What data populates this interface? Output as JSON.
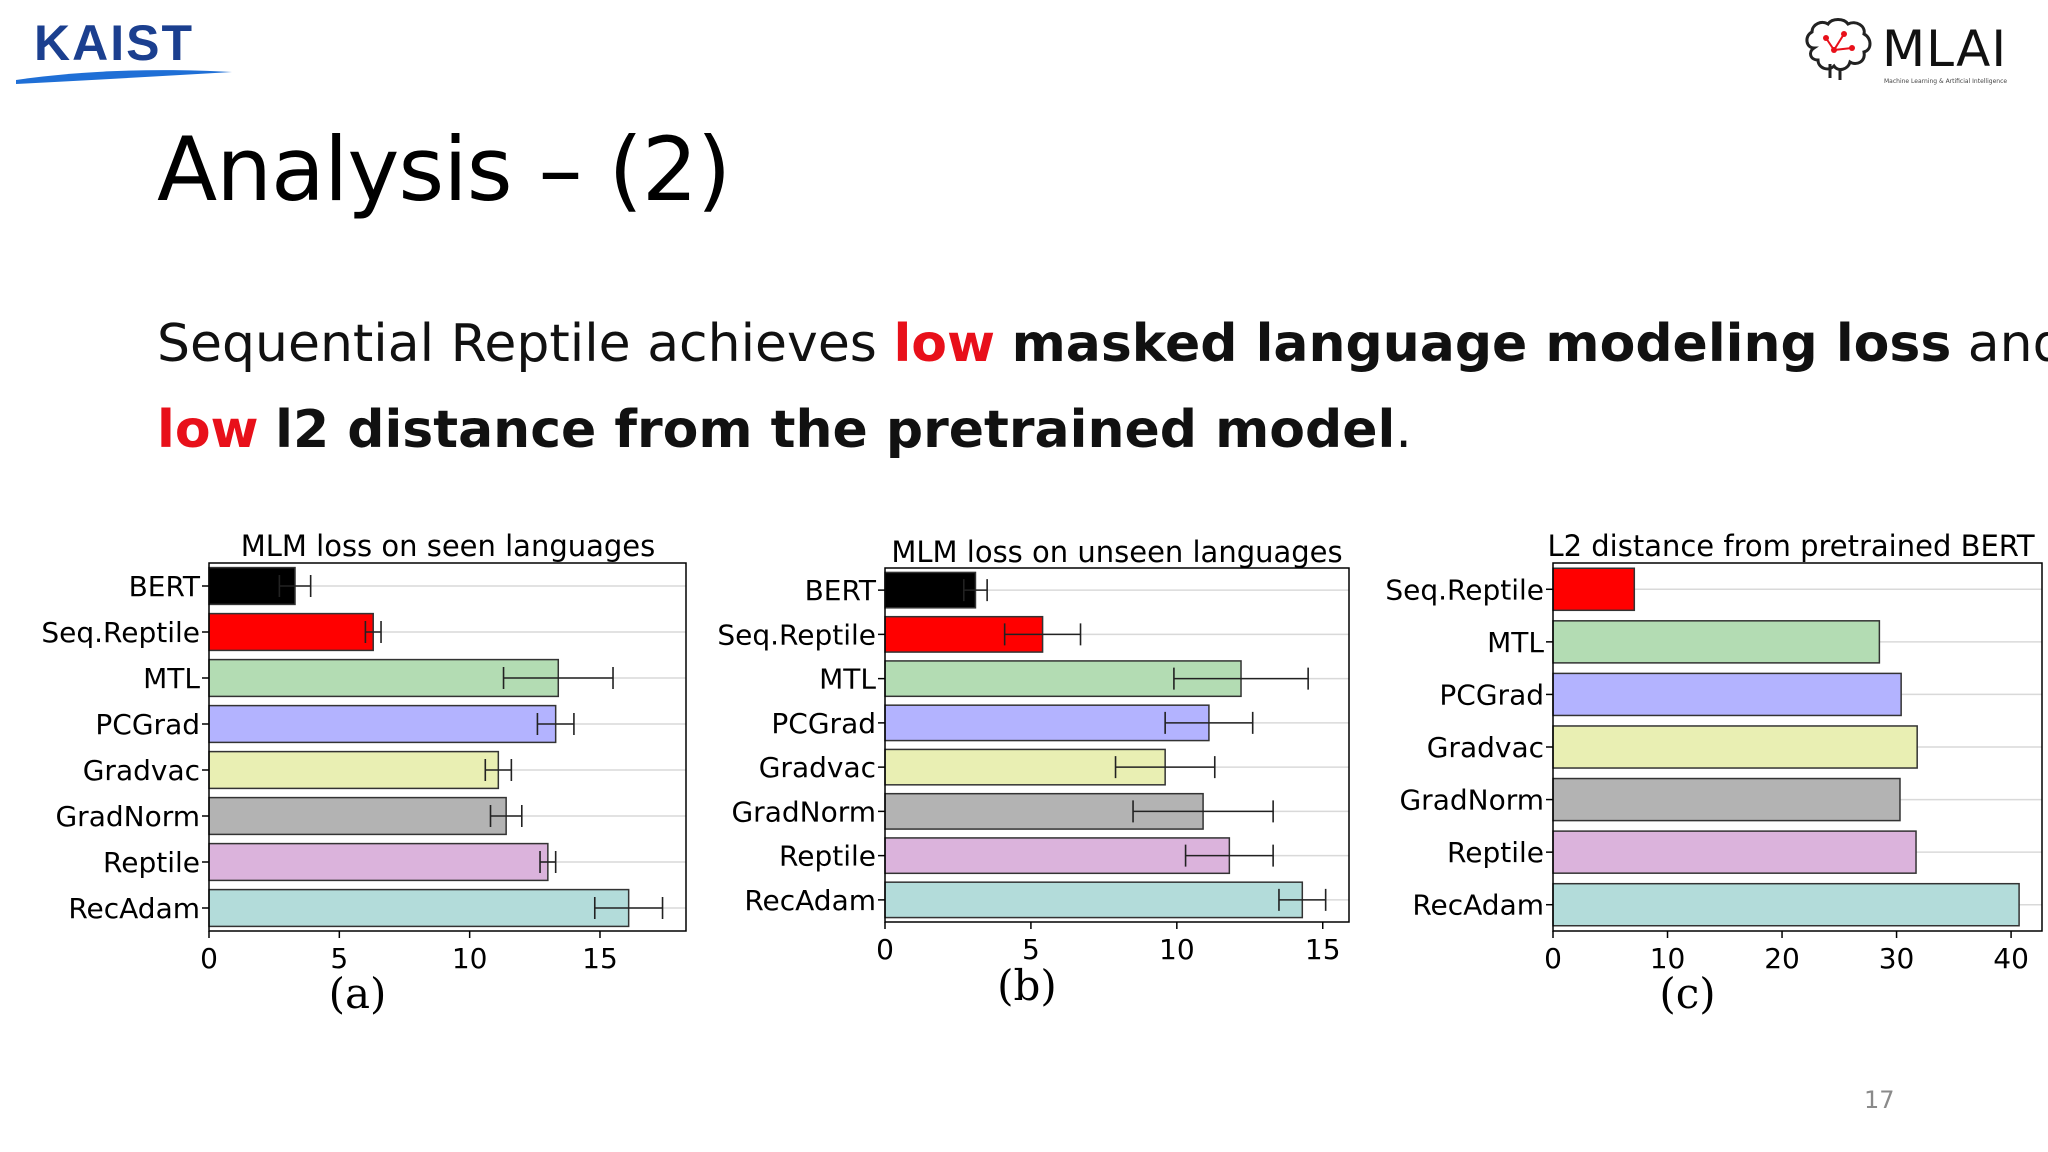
{
  "slide": {
    "title": "Analysis – (2)",
    "line1": {
      "t1": "Sequential Reptile achieves ",
      "t2": "low",
      "t3": " ",
      "t4": "masked language modeling loss",
      "t5": " and"
    },
    "line2": {
      "t1": "low",
      "t2": " ",
      "t3": "l2 distance from the pretrained model",
      "t4": "."
    },
    "page_number": "17"
  },
  "logos": {
    "kaist_text": "KAIST",
    "mlai_text": "MLAI",
    "mlai_subtitle": "Machine Learning & Artificial Intelligence"
  },
  "colors": {
    "BERT": "#000000",
    "Seq.Reptile": "#ff0000",
    "MTL": "#b3dcb3",
    "PCGrad": "#b3b3ff",
    "Gradvac": "#e9efb3",
    "GradNorm": "#b3b3b3",
    "Reptile": "#dbb3dc",
    "RecAdam": "#b3dcda",
    "red_text": "#e8101a"
  },
  "chart_data": [
    {
      "type": "bar",
      "orientation": "horizontal",
      "title": "MLM loss on seen languages",
      "caption": "(a)",
      "categories": [
        "BERT",
        "Seq.Reptile",
        "MTL",
        "PCGrad",
        "Gradvac",
        "GradNorm",
        "Reptile",
        "RecAdam"
      ],
      "values": [
        3.3,
        6.3,
        13.4,
        13.3,
        11.1,
        11.4,
        13.0,
        16.1
      ],
      "errors": [
        0.6,
        0.3,
        2.1,
        0.7,
        0.5,
        0.6,
        0.3,
        1.3
      ],
      "xlim": [
        0,
        18.3
      ],
      "xticks": [
        0,
        5,
        10,
        15
      ],
      "grid": "horizontal"
    },
    {
      "type": "bar",
      "orientation": "horizontal",
      "title": "MLM loss on unseen languages",
      "caption": "(b)",
      "categories": [
        "BERT",
        "Seq.Reptile",
        "MTL",
        "PCGrad",
        "Gradvac",
        "GradNorm",
        "Reptile",
        "RecAdam"
      ],
      "values": [
        3.1,
        5.4,
        12.2,
        11.1,
        9.6,
        10.9,
        11.8,
        14.3
      ],
      "errors": [
        0.4,
        1.3,
        2.3,
        1.5,
        1.7,
        2.4,
        1.5,
        0.8
      ],
      "xlim": [
        0,
        15.9
      ],
      "xticks": [
        0,
        5,
        10,
        15
      ],
      "grid": "horizontal"
    },
    {
      "type": "bar",
      "orientation": "horizontal",
      "title": "L2 distance from pretrained BERT",
      "caption": "(c)",
      "categories": [
        "Seq.Reptile",
        "MTL",
        "PCGrad",
        "Gradvac",
        "GradNorm",
        "Reptile",
        "RecAdam"
      ],
      "values": [
        7.1,
        28.5,
        30.4,
        31.8,
        30.3,
        31.7,
        40.7
      ],
      "xlim": [
        0,
        42.7
      ],
      "xticks": [
        0,
        10,
        20,
        30,
        40
      ],
      "grid": "horizontal"
    }
  ]
}
